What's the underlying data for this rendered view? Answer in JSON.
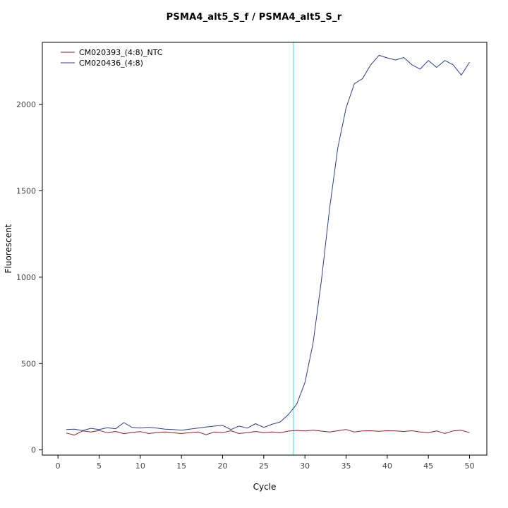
{
  "chart_data": {
    "type": "line",
    "title": "PSMA4_alt5_S_f / PSMA4_alt5_S_r",
    "xlabel": "Cycle",
    "ylabel": "Fluorescent",
    "xlim": [
      -1.9,
      52.1
    ],
    "ylim": [
      -30,
      2360
    ],
    "xticks": [
      0,
      5,
      10,
      15,
      20,
      25,
      30,
      35,
      40,
      45,
      50
    ],
    "yticks": [
      0,
      500,
      1000,
      1500,
      2000
    ],
    "grid": false,
    "legend_position": "top-left",
    "threshold": {
      "cycle": 28.6,
      "color": "#00ffff"
    },
    "x": [
      1,
      2,
      3,
      4,
      5,
      6,
      7,
      8,
      9,
      10,
      11,
      12,
      13,
      14,
      15,
      16,
      17,
      18,
      19,
      20,
      21,
      22,
      23,
      24,
      25,
      26,
      27,
      28,
      29,
      30,
      31,
      32,
      33,
      34,
      35,
      36,
      37,
      38,
      39,
      40,
      41,
      42,
      43,
      44,
      45,
      46,
      47,
      48,
      49,
      50
    ],
    "series": [
      {
        "name": "CM020393_(4:8)_NTC",
        "color": "#8b2323",
        "values": [
          98,
          86,
          110,
          104,
          112,
          100,
          107,
          94,
          101,
          106,
          95,
          100,
          104,
          99,
          95,
          100,
          104,
          88,
          104,
          100,
          111,
          95,
          100,
          107,
          100,
          104,
          100,
          109,
          113,
          110,
          114,
          109,
          104,
          111,
          118,
          104,
          110,
          111,
          108,
          111,
          110,
          107,
          111,
          104,
          100,
          110,
          95,
          110,
          114,
          100
        ]
      },
      {
        "name": "CM020436_(4:8)",
        "color": "#27408b",
        "values": [
          118,
          120,
          112,
          125,
          118,
          128,
          122,
          158,
          130,
          127,
          131,
          126,
          120,
          118,
          114,
          120,
          126,
          132,
          138,
          142,
          118,
          138,
          126,
          152,
          130,
          148,
          162,
          205,
          265,
          390,
          620,
          980,
          1400,
          1750,
          1980,
          2120,
          2150,
          2230,
          2285,
          2270,
          2258,
          2272,
          2230,
          2205,
          2255,
          2215,
          2255,
          2230,
          2170,
          2245
        ]
      }
    ]
  }
}
